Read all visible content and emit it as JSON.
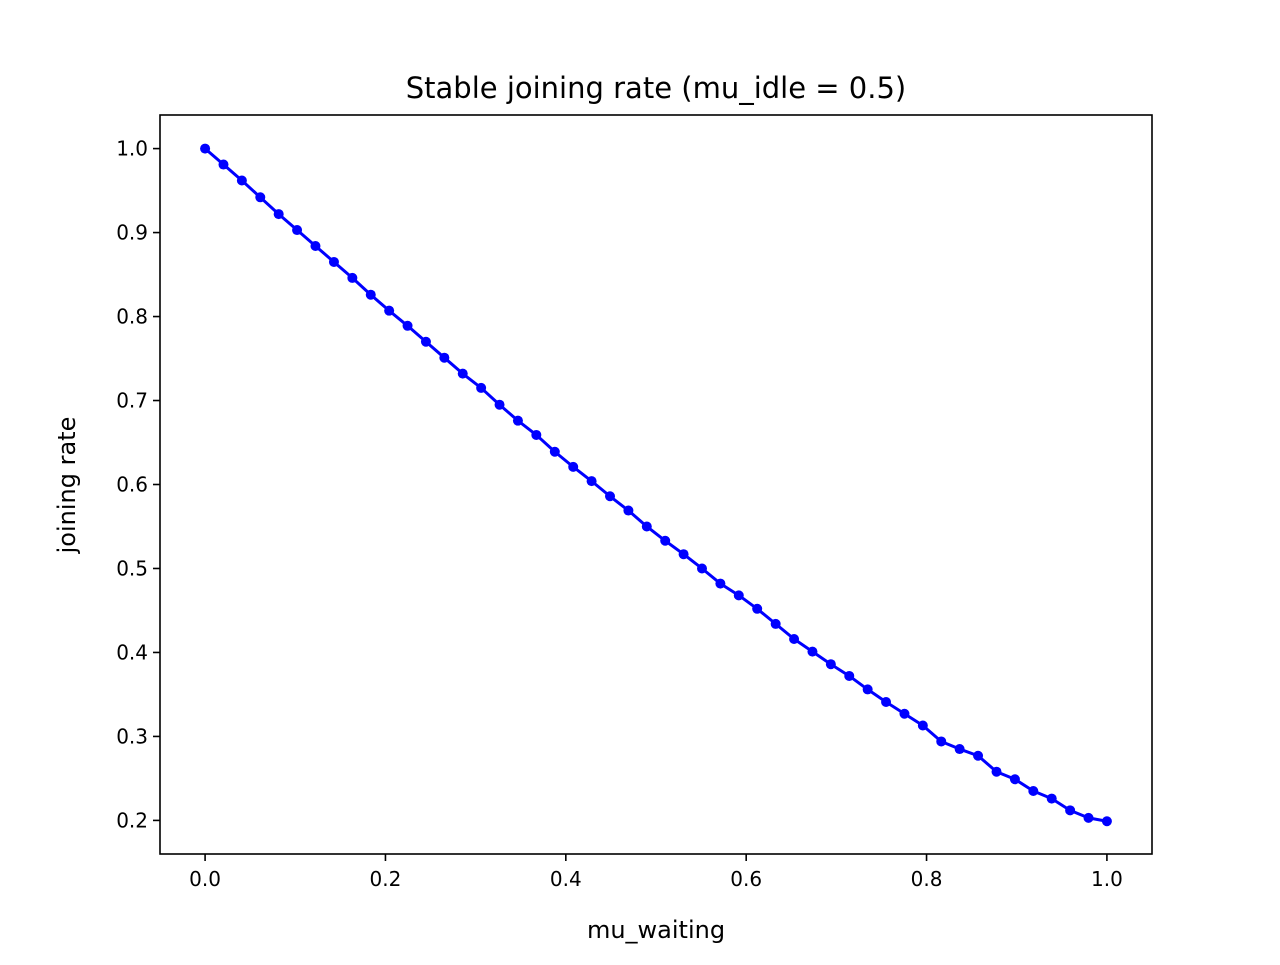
{
  "chart_data": {
    "type": "line",
    "title": "Stable joining rate (mu_idle = 0.5)",
    "xlabel": "mu_waiting",
    "ylabel": "joining rate",
    "xlim": [
      -0.05,
      1.05
    ],
    "ylim": [
      0.16,
      1.04
    ],
    "xticks": [
      0.0,
      0.2,
      0.4,
      0.6,
      0.8,
      1.0
    ],
    "xtick_labels": [
      "0.0",
      "0.2",
      "0.4",
      "0.6",
      "0.8",
      "1.0"
    ],
    "yticks": [
      0.2,
      0.3,
      0.4,
      0.5,
      0.6,
      0.7,
      0.8,
      0.9,
      1.0
    ],
    "ytick_labels": [
      "0.2",
      "0.3",
      "0.4",
      "0.5",
      "0.6",
      "0.7",
      "0.8",
      "0.9",
      "1.0"
    ],
    "grid": false,
    "series": [
      {
        "color": "#0000ff",
        "marker": "dot",
        "x": [
          0.0,
          0.0204,
          0.0408,
          0.0612,
          0.0816,
          0.102,
          0.1224,
          0.1429,
          0.1633,
          0.1837,
          0.2041,
          0.2245,
          0.2449,
          0.2653,
          0.2857,
          0.3061,
          0.3265,
          0.3469,
          0.3673,
          0.3878,
          0.4082,
          0.4286,
          0.449,
          0.4694,
          0.4898,
          0.5102,
          0.5306,
          0.551,
          0.5714,
          0.5918,
          0.6122,
          0.6327,
          0.6531,
          0.6735,
          0.6939,
          0.7143,
          0.7347,
          0.7551,
          0.7755,
          0.7959,
          0.8163,
          0.8367,
          0.8571,
          0.8776,
          0.898,
          0.9184,
          0.9388,
          0.9592,
          0.9796,
          1.0
        ],
        "y": [
          1.0,
          0.981,
          0.962,
          0.942,
          0.922,
          0.903,
          0.884,
          0.865,
          0.846,
          0.826,
          0.807,
          0.789,
          0.77,
          0.751,
          0.732,
          0.715,
          0.695,
          0.676,
          0.659,
          0.639,
          0.621,
          0.604,
          0.586,
          0.569,
          0.55,
          0.533,
          0.517,
          0.5,
          0.482,
          0.468,
          0.452,
          0.434,
          0.416,
          0.401,
          0.386,
          0.372,
          0.356,
          0.341,
          0.327,
          0.313,
          0.294,
          0.285,
          0.277,
          0.258,
          0.249,
          0.235,
          0.226,
          0.212,
          0.203,
          0.199
        ]
      }
    ]
  }
}
